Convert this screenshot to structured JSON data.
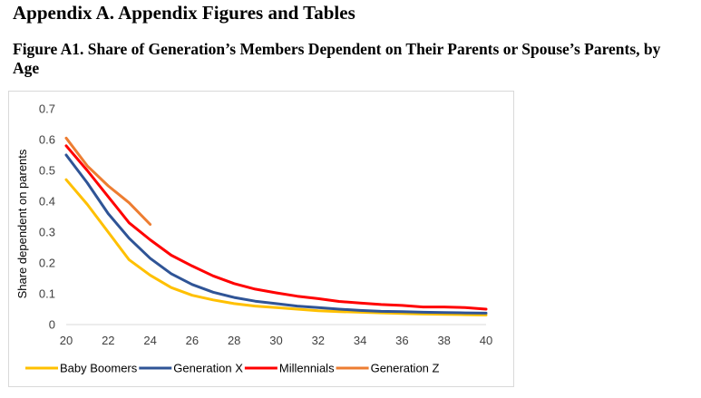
{
  "heading": "Appendix A. Appendix Figures and Tables",
  "figure_title": "Figure A1. Share of Generation’s Members Dependent on Their Parents or Spouse’s Parents, by Age",
  "chart_data": {
    "type": "line",
    "title": "Figure A1. Share of Generation’s Members Dependent on Their Parents or Spouse’s Parents, by Age",
    "xlabel": "",
    "ylabel": "Share dependent on parents",
    "xlim": [
      20,
      40
    ],
    "ylim": [
      0,
      0.7
    ],
    "x_ticks": [
      "20",
      "22",
      "24",
      "26",
      "28",
      "30",
      "32",
      "34",
      "36",
      "38",
      "40"
    ],
    "y_ticks": [
      "0",
      "0.1",
      "0.2",
      "0.3",
      "0.4",
      "0.5",
      "0.6",
      "0.7"
    ],
    "grid": false,
    "legend_position": "bottom",
    "series": [
      {
        "name": "Baby Boomers",
        "color": "#FFC000",
        "x": [
          20,
          21,
          22,
          23,
          24,
          25,
          26,
          27,
          28,
          29,
          30,
          31,
          32,
          33,
          34,
          35,
          36,
          37,
          38,
          39,
          40
        ],
        "values": [
          0.47,
          0.39,
          0.3,
          0.21,
          0.16,
          0.12,
          0.095,
          0.08,
          0.068,
          0.06,
          0.055,
          0.05,
          0.045,
          0.042,
          0.04,
          0.038,
          0.036,
          0.034,
          0.033,
          0.032,
          0.031
        ]
      },
      {
        "name": "Generation X",
        "color": "#2F5496",
        "x": [
          20,
          21,
          22,
          23,
          24,
          25,
          26,
          27,
          28,
          29,
          30,
          31,
          32,
          33,
          34,
          35,
          36,
          37,
          38,
          39,
          40
        ],
        "values": [
          0.55,
          0.46,
          0.36,
          0.28,
          0.215,
          0.165,
          0.13,
          0.105,
          0.088,
          0.076,
          0.068,
          0.06,
          0.055,
          0.05,
          0.046,
          0.043,
          0.042,
          0.04,
          0.039,
          0.038,
          0.037
        ]
      },
      {
        "name": "Millennials",
        "color": "#FF0000",
        "x": [
          20,
          21,
          22,
          23,
          24,
          25,
          26,
          27,
          28,
          29,
          30,
          31,
          32,
          33,
          34,
          35,
          36,
          37,
          38,
          39,
          40
        ],
        "values": [
          0.58,
          0.5,
          0.415,
          0.33,
          0.275,
          0.225,
          0.19,
          0.158,
          0.133,
          0.115,
          0.103,
          0.092,
          0.084,
          0.075,
          0.07,
          0.065,
          0.062,
          0.057,
          0.057,
          0.055,
          0.05
        ]
      },
      {
        "name": "Generation Z",
        "color": "#ED7D31",
        "x": [
          20,
          21,
          22,
          23,
          24
        ],
        "values": [
          0.605,
          0.515,
          0.45,
          0.395,
          0.325
        ]
      }
    ]
  }
}
